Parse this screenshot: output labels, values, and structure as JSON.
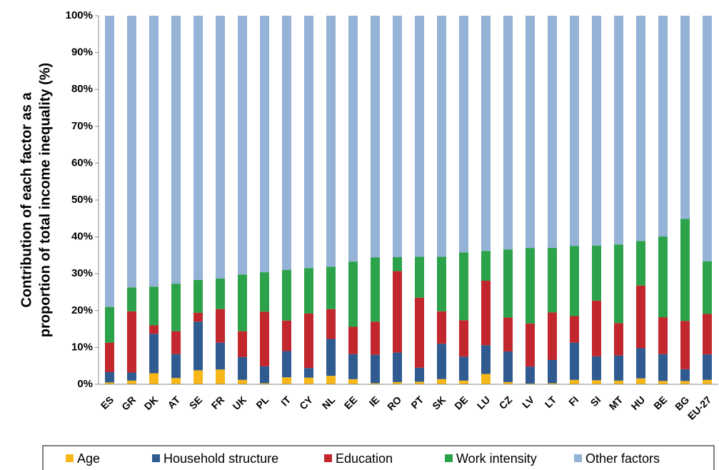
{
  "chart_data": {
    "type": "stacked_bar",
    "y_label": [
      "Contribution of each factor as a",
      "proportion of total income inequality (%)"
    ],
    "categories": [
      "ES",
      "GR",
      "DK",
      "AT",
      "SE",
      "FR",
      "UK",
      "PL",
      "IT",
      "CY",
      "NL",
      "EE",
      "IE",
      "RO",
      "PT",
      "SK",
      "DE",
      "LU",
      "CZ",
      "LV",
      "LT",
      "FI",
      "SI",
      "MT",
      "HU",
      "BE",
      "BG",
      "EU-27"
    ],
    "series": [
      {
        "name": "Age",
        "color": "#f7b718",
        "values": [
          0.5,
          1.0,
          3.0,
          1.7,
          3.8,
          4.0,
          1.2,
          0.3,
          1.9,
          1.8,
          2.3,
          1.4,
          0.3,
          0.6,
          0.7,
          1.4,
          1.0,
          2.8,
          0.6,
          0.2,
          0.3,
          1.2,
          1.1,
          1.0,
          1.6,
          0.9,
          0.9,
          1.2
        ]
      },
      {
        "name": "Household structure",
        "color": "#2f5b91",
        "values": [
          2.8,
          2.2,
          10.7,
          6.5,
          13.2,
          7.3,
          6.2,
          4.6,
          7.1,
          2.6,
          10.0,
          6.8,
          7.7,
          8.0,
          3.8,
          9.6,
          6.5,
          7.8,
          8.3,
          4.6,
          6.3,
          10.1,
          6.5,
          6.8,
          8.2,
          7.3,
          3.2,
          6.9
        ]
      },
      {
        "name": "Education",
        "color": "#c1272d",
        "values": [
          8.0,
          16.6,
          2.3,
          6.2,
          2.4,
          9.1,
          7.0,
          14.8,
          8.3,
          14.8,
          8.1,
          7.4,
          9.0,
          22.1,
          19.0,
          8.8,
          9.9,
          17.5,
          9.2,
          11.7,
          12.9,
          7.2,
          15.1,
          8.8,
          17.0,
          10.0,
          13.1,
          11.0
        ]
      },
      {
        "name": "Work intensity",
        "color": "#2ca24a",
        "values": [
          9.7,
          6.5,
          10.5,
          12.9,
          8.9,
          8.3,
          15.4,
          10.7,
          13.7,
          12.3,
          11.5,
          17.7,
          17.4,
          3.8,
          11.1,
          14.8,
          18.4,
          8.1,
          18.5,
          20.5,
          17.5,
          19.0,
          14.9,
          21.3,
          12.1,
          21.9,
          27.7,
          14.3
        ]
      },
      {
        "name": "Other factors",
        "color": "#95b3d7",
        "values": [
          79.0,
          73.7,
          73.5,
          72.7,
          71.7,
          71.3,
          70.2,
          69.6,
          69.0,
          68.5,
          68.1,
          66.7,
          65.6,
          65.5,
          65.4,
          65.4,
          64.2,
          63.8,
          63.4,
          63.0,
          63.0,
          62.5,
          62.4,
          62.1,
          61.1,
          59.9,
          55.1,
          66.6
        ]
      }
    ],
    "ylim": [
      0,
      100
    ],
    "yticks": [
      {
        "value": 0,
        "label": "0%"
      },
      {
        "value": 10,
        "label": "10%"
      },
      {
        "value": 20,
        "label": "20%"
      },
      {
        "value": 30,
        "label": "30%"
      },
      {
        "value": 40,
        "label": "40%"
      },
      {
        "value": 50,
        "label": "50%"
      },
      {
        "value": 60,
        "label": "60%"
      },
      {
        "value": 70,
        "label": "70%"
      },
      {
        "value": 80,
        "label": "80%"
      },
      {
        "value": 90,
        "label": "90%"
      },
      {
        "value": 100,
        "label": "100%"
      }
    ],
    "grid": false,
    "legend": "bottom"
  }
}
